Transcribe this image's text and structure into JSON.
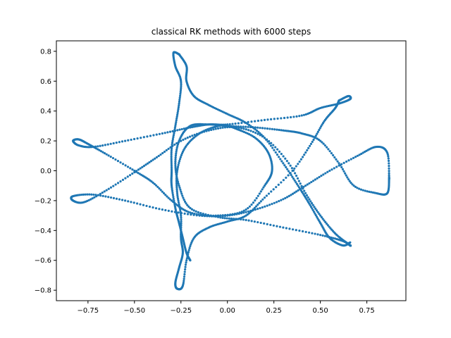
{
  "chart_data": {
    "type": "scatter",
    "title": "classical RK methods with 6000 steps",
    "xlabel": "",
    "ylabel": "",
    "xlim": [
      -0.92,
      0.96
    ],
    "ylim": [
      -0.87,
      0.87
    ],
    "grid": false,
    "legend": "none",
    "marker": "dot",
    "steps": 6000,
    "xticks": [
      -0.75,
      -0.5,
      -0.25,
      0.0,
      0.25,
      0.5,
      0.75
    ],
    "xtick_labels": [
      "−0.75",
      "−0.50",
      "−0.25",
      "0.00",
      "0.25",
      "0.50",
      "0.75"
    ],
    "yticks": [
      -0.8,
      -0.6,
      -0.4,
      -0.2,
      0.0,
      0.2,
      0.4,
      0.6,
      0.8
    ],
    "ytick_labels": [
      "−0.8",
      "−0.6",
      "−0.4",
      "−0.2",
      "0.0",
      "0.2",
      "0.4",
      "0.6",
      "0.8"
    ],
    "series": [
      {
        "color": "#1f77b4",
        "points": [
          [
            0.87,
            -0.05
          ],
          [
            0.86,
            0.12
          ],
          [
            0.8,
            0.16
          ],
          [
            0.7,
            0.1
          ],
          [
            0.55,
            0.0
          ],
          [
            0.42,
            -0.1
          ],
          [
            0.3,
            -0.19
          ],
          [
            0.15,
            -0.26
          ],
          [
            0.0,
            -0.3
          ],
          [
            -0.15,
            -0.3
          ],
          [
            -0.35,
            -0.26
          ],
          [
            -0.55,
            -0.2
          ],
          [
            -0.72,
            -0.16
          ],
          [
            -0.83,
            -0.17
          ],
          [
            -0.83,
            -0.2
          ],
          [
            -0.77,
            -0.21
          ],
          [
            -0.65,
            -0.13
          ],
          [
            -0.5,
            -0.01
          ],
          [
            -0.38,
            0.09
          ],
          [
            -0.25,
            0.2
          ],
          [
            -0.1,
            0.27
          ],
          [
            0.05,
            0.29
          ],
          [
            0.2,
            0.22
          ],
          [
            0.33,
            0.05
          ],
          [
            0.42,
            -0.15
          ],
          [
            0.5,
            -0.3
          ],
          [
            0.58,
            -0.42
          ],
          [
            0.65,
            -0.49
          ],
          [
            0.66,
            -0.5
          ],
          [
            0.62,
            -0.47
          ],
          [
            0.5,
            -0.43
          ],
          [
            0.3,
            -0.38
          ],
          [
            0.1,
            -0.33
          ],
          [
            -0.05,
            -0.31
          ],
          [
            -0.2,
            -0.25
          ],
          [
            -0.26,
            -0.1
          ],
          [
            -0.28,
            0.05
          ],
          [
            -0.26,
            0.2
          ],
          [
            -0.2,
            0.3
          ],
          [
            -0.1,
            0.31
          ],
          [
            0.0,
            0.3
          ],
          [
            0.15,
            0.29
          ],
          [
            0.3,
            0.27
          ],
          [
            0.4,
            0.25
          ],
          [
            0.5,
            0.2
          ],
          [
            0.6,
            0.05
          ],
          [
            0.68,
            -0.1
          ],
          [
            0.8,
            -0.15
          ],
          [
            0.86,
            -0.15
          ],
          [
            0.87,
            -0.05
          ]
        ]
      },
      {
        "color": "#1f77b4",
        "points": [
          [
            0.6,
            0.47
          ],
          [
            0.65,
            0.5
          ],
          [
            0.66,
            0.48
          ],
          [
            0.6,
            0.45
          ],
          [
            0.5,
            0.42
          ],
          [
            0.4,
            0.37
          ],
          [
            0.2,
            0.34
          ],
          [
            0.0,
            0.31
          ],
          [
            -0.1,
            0.31
          ],
          [
            -0.2,
            0.29
          ],
          [
            -0.35,
            0.25
          ],
          [
            -0.55,
            0.2
          ],
          [
            -0.72,
            0.16
          ],
          [
            -0.8,
            0.17
          ],
          [
            -0.83,
            0.2
          ],
          [
            -0.8,
            0.21
          ],
          [
            -0.75,
            0.18
          ],
          [
            -0.65,
            0.11
          ],
          [
            -0.5,
            0.0
          ],
          [
            -0.4,
            -0.08
          ],
          [
            -0.3,
            -0.2
          ],
          [
            -0.2,
            -0.28
          ],
          [
            -0.05,
            -0.3
          ],
          [
            0.1,
            -0.26
          ],
          [
            0.2,
            -0.1
          ],
          [
            0.24,
            0.0
          ],
          [
            0.22,
            0.12
          ],
          [
            0.15,
            0.22
          ],
          [
            0.05,
            0.28
          ],
          [
            0.0,
            0.3
          ],
          [
            -0.05,
            0.3
          ],
          [
            -0.15,
            0.25
          ],
          [
            -0.23,
            0.15
          ],
          [
            -0.27,
            -0.0
          ],
          [
            -0.27,
            -0.15
          ],
          [
            -0.25,
            -0.3
          ],
          [
            -0.25,
            -0.45
          ],
          [
            -0.24,
            -0.55
          ],
          [
            -0.26,
            -0.65
          ],
          [
            -0.28,
            -0.75
          ],
          [
            -0.27,
            -0.79
          ],
          [
            -0.24,
            -0.77
          ],
          [
            -0.22,
            -0.6
          ],
          [
            -0.18,
            -0.45
          ],
          [
            -0.1,
            -0.38
          ],
          [
            0.0,
            -0.34
          ],
          [
            0.1,
            -0.3
          ],
          [
            0.2,
            -0.18
          ],
          [
            0.35,
            0.0
          ],
          [
            0.45,
            0.18
          ],
          [
            0.52,
            0.33
          ],
          [
            0.58,
            0.42
          ],
          [
            0.6,
            0.47
          ]
        ]
      },
      {
        "color": "#1f77b4",
        "points": [
          [
            -0.26,
            0.78
          ],
          [
            -0.29,
            0.79
          ],
          [
            -0.28,
            0.7
          ],
          [
            -0.25,
            0.6
          ],
          [
            -0.26,
            0.45
          ],
          [
            -0.28,
            0.3
          ],
          [
            -0.3,
            0.15
          ],
          [
            -0.3,
            0.0
          ],
          [
            -0.3,
            -0.1
          ],
          [
            -0.28,
            -0.25
          ],
          [
            -0.26,
            -0.35
          ],
          [
            -0.24,
            -0.45
          ],
          [
            -0.22,
            -0.55
          ],
          [
            -0.2,
            -0.6
          ]
        ]
      },
      {
        "color": "#1f77b4",
        "points": [
          [
            -0.26,
            0.78
          ],
          [
            -0.22,
            0.7
          ],
          [
            -0.22,
            0.6
          ],
          [
            -0.18,
            0.5
          ],
          [
            -0.1,
            0.44
          ],
          [
            0.0,
            0.38
          ],
          [
            0.1,
            0.32
          ],
          [
            0.2,
            0.22
          ],
          [
            0.3,
            0.05
          ],
          [
            0.38,
            -0.1
          ],
          [
            0.44,
            -0.22
          ],
          [
            0.5,
            -0.35
          ],
          [
            0.55,
            -0.45
          ],
          [
            0.62,
            -0.5
          ],
          [
            0.66,
            -0.48
          ]
        ]
      }
    ]
  }
}
